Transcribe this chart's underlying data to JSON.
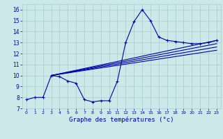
{
  "title": "Graphe des températures (°c)",
  "background_color": "#cce8e8",
  "grid_color": "#aacccc",
  "line_color": "#0000aa",
  "x_ticks": [
    0,
    1,
    2,
    3,
    4,
    5,
    6,
    7,
    8,
    9,
    10,
    11,
    12,
    13,
    14,
    15,
    16,
    17,
    18,
    19,
    20,
    21,
    22,
    23
  ],
  "y_ticks": [
    7,
    8,
    9,
    10,
    11,
    12,
    13,
    14,
    15,
    16
  ],
  "xlim": [
    -0.5,
    23.5
  ],
  "ylim": [
    7,
    16.5
  ],
  "series_main": {
    "x": [
      0,
      1,
      2,
      3,
      4,
      5,
      6,
      7,
      8,
      9,
      10,
      11,
      12,
      13,
      14,
      15,
      16,
      17,
      18,
      19,
      20,
      21,
      22,
      23
    ],
    "y": [
      7.8,
      8.0,
      8.0,
      10.0,
      9.9,
      9.5,
      9.3,
      7.8,
      7.6,
      7.7,
      7.7,
      9.5,
      13.0,
      14.9,
      16.0,
      15.0,
      13.5,
      13.2,
      13.1,
      13.0,
      12.9,
      12.9,
      13.0,
      13.2
    ]
  },
  "series_lines": [
    {
      "x": [
        3,
        23
      ],
      "y": [
        10.0,
        13.2
      ]
    },
    {
      "x": [
        3,
        23
      ],
      "y": [
        10.0,
        12.9
      ]
    },
    {
      "x": [
        3,
        23
      ],
      "y": [
        10.0,
        12.6
      ]
    },
    {
      "x": [
        3,
        23
      ],
      "y": [
        10.0,
        12.3
      ]
    }
  ]
}
